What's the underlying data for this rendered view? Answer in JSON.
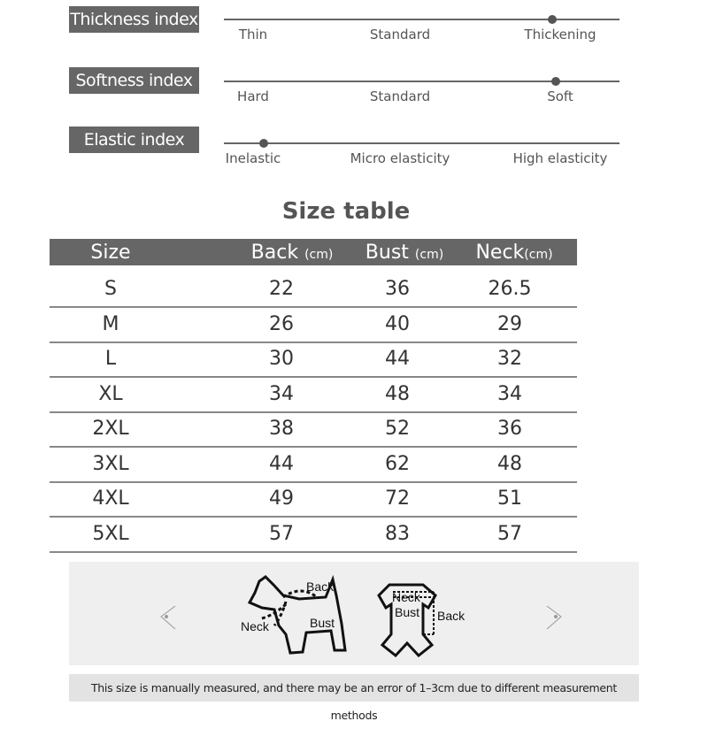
{
  "indices": [
    {
      "label": "Thickness index",
      "ticks": [
        "Thin",
        "Standard",
        "Thickening"
      ],
      "level": 0.83
    },
    {
      "label": "Softness index",
      "ticks": [
        "Hard",
        "Standard",
        "Soft"
      ],
      "level": 0.84
    },
    {
      "label": "Elastic index",
      "ticks": [
        "Inelastic",
        "Micro elasticity",
        "High elasticity"
      ],
      "level": 0.1
    }
  ],
  "size_table": {
    "title": "Size table",
    "headers": [
      {
        "name": "Size",
        "unit": ""
      },
      {
        "name": "Back",
        "unit": "(cm)"
      },
      {
        "name": "Bust",
        "unit": "(cm)"
      },
      {
        "name": "Neck",
        "unit": "(cm)"
      }
    ],
    "rows": [
      [
        "S",
        "22",
        "36",
        "26.5"
      ],
      [
        "M",
        "26",
        "40",
        "29"
      ],
      [
        "L",
        "30",
        "44",
        "32"
      ],
      [
        "XL",
        "34",
        "48",
        "34"
      ],
      [
        "2XL",
        "38",
        "52",
        "36"
      ],
      [
        "3XL",
        "44",
        "62",
        "48"
      ],
      [
        "4XL",
        "49",
        "72",
        "51"
      ],
      [
        "5XL",
        "57",
        "83",
        "57"
      ]
    ]
  },
  "diagram": {
    "dog_labels": {
      "back": "Back",
      "neck": "Neck",
      "bust": "Bust"
    },
    "garment_labels": {
      "neck": "Neck",
      "bust": "Bust",
      "back": "Back"
    }
  },
  "note": "This size is manually measured, and there may be an error of 1–3cm due to different measurement methods"
}
